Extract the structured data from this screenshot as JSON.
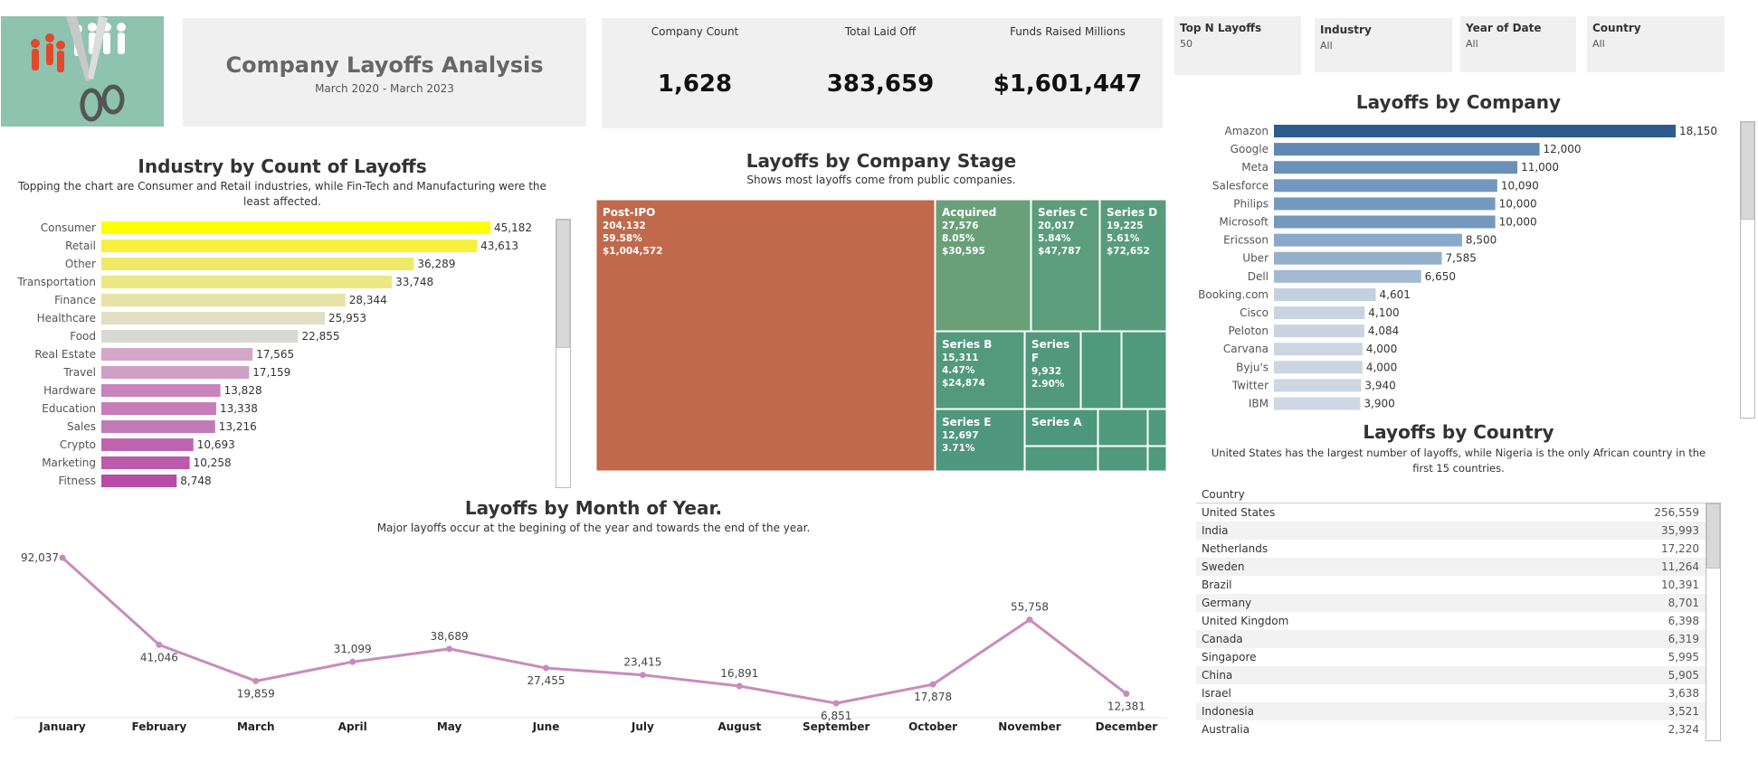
{
  "header": {
    "title": "Company Layoffs Analysis",
    "subtitle": "March 2020 - March 2023"
  },
  "kpis": [
    {
      "label": "Company Count",
      "value": "1,628"
    },
    {
      "label": "Total Laid Off",
      "value": "383,659"
    },
    {
      "label": "Funds Raised Millions",
      "value": "$1,601,447"
    }
  ],
  "filters": [
    {
      "label": "Top N Layoffs",
      "value": "50"
    },
    {
      "label": "Industry",
      "value": "All"
    },
    {
      "label": "Year of Date",
      "value": "All"
    },
    {
      "label": "Country",
      "value": "All"
    }
  ],
  "colors": {
    "treemap_postipo": "#c0694c",
    "treemap_green": "#4f9a7d",
    "line": "#c98bbd",
    "company_dark": "#2e5b8e",
    "company_light": "#dce4ec"
  },
  "chart_data": [
    {
      "id": "industry",
      "type": "bar",
      "orientation": "horizontal",
      "title": "Industry by Count of Layoffs",
      "subtitle": "Topping the chart are Consumer and Retail industries, while Fin-Tech and Manufacturing were the least affected.",
      "categories": [
        "Consumer",
        "Retail",
        "Other",
        "Transportation",
        "Finance",
        "Healthcare",
        "Food",
        "Real Estate",
        "Travel",
        "Hardware",
        "Education",
        "Sales",
        "Crypto",
        "Marketing",
        "Fitness"
      ],
      "values": [
        45182,
        43613,
        36289,
        33748,
        28344,
        25953,
        22855,
        17565,
        17159,
        13828,
        13338,
        13216,
        10693,
        10258,
        8748
      ],
      "labels": [
        "45,182",
        "43,613",
        "36,289",
        "33,748",
        "28,344",
        "25,953",
        "22,855",
        "17,565",
        "17,159",
        "13,828",
        "13,338",
        "13,216",
        "10,693",
        "10,258",
        "8,748"
      ],
      "colors": [
        "#ffff00",
        "#f7f03e",
        "#efe968",
        "#ebe785",
        "#e5e3a6",
        "#e0dfc4",
        "#d9d9d4",
        "#d3a7c8",
        "#cf9fc4",
        "#c884bb",
        "#c67db8",
        "#c27ab6",
        "#bf65b0",
        "#bc5aab",
        "#b84ca6"
      ]
    },
    {
      "id": "stage",
      "type": "treemap",
      "title": "Layoffs by Company Stage",
      "subtitle": "Shows most layoffs come from public companies.",
      "tiles": [
        {
          "name": "Post-IPO",
          "laid_off": "204,132",
          "share": "59.58%",
          "funds": "$1,004,572"
        },
        {
          "name": "Acquired",
          "laid_off": "27,576",
          "share": "8.05%",
          "funds": "$30,595"
        },
        {
          "name": "Series C",
          "laid_off": "20,017",
          "share": "5.84%",
          "funds": "$47,787"
        },
        {
          "name": "Series D",
          "laid_off": "19,225",
          "share": "5.61%",
          "funds": "$72,652"
        },
        {
          "name": "Series B",
          "laid_off": "15,311",
          "share": "4.47%",
          "funds": "$24,874"
        },
        {
          "name": "Series F",
          "laid_off": "9,932",
          "share": "2.90%",
          "funds": ""
        },
        {
          "name": "Series E",
          "laid_off": "12,697",
          "share": "3.71%",
          "funds": ""
        },
        {
          "name": "Series A",
          "laid_off": "",
          "share": "",
          "funds": ""
        }
      ]
    },
    {
      "id": "company",
      "type": "bar",
      "orientation": "horizontal",
      "title": "Layoffs by Company",
      "categories": [
        "Amazon",
        "Google",
        "Meta",
        "Salesforce",
        "Philips",
        "Microsoft",
        "Ericsson",
        "Uber",
        "Dell",
        "Booking.com",
        "Cisco",
        "Peloton",
        "Carvana",
        "Byju's",
        "Twitter",
        "IBM"
      ],
      "values": [
        18150,
        12000,
        11000,
        10090,
        10000,
        10000,
        8500,
        7585,
        6650,
        4601,
        4100,
        4084,
        4000,
        4000,
        3940,
        3900
      ],
      "labels": [
        "18,150",
        "12,000",
        "11,000",
        "10,090",
        "10,000",
        "10,000",
        "8,500",
        "7,585",
        "6,650",
        "4,601",
        "4,100",
        "4,084",
        "4,000",
        "4,000",
        "3,940",
        "3,900"
      ],
      "colors": [
        "#2e5b8e",
        "#6088b4",
        "#6a90ba",
        "#7398bf",
        "#7499bf",
        "#7499bf",
        "#8aa8c8",
        "#96b0cc",
        "#a2b9d1",
        "#c3d0dd",
        "#c9d4e0",
        "#c9d4e0",
        "#cbd6e1",
        "#cbd6e1",
        "#ccd7e2",
        "#cdd8e2"
      ]
    },
    {
      "id": "month",
      "type": "line",
      "title": "Layoffs by Month of Year.",
      "subtitle": "Major layoffs occur at the begining of the year and towards the end of the year.",
      "x": [
        "January",
        "February",
        "March",
        "April",
        "May",
        "June",
        "July",
        "August",
        "September",
        "October",
        "November",
        "December"
      ],
      "values": [
        92037,
        41046,
        19859,
        31099,
        38689,
        27455,
        23415,
        16891,
        6851,
        17878,
        55758,
        12381
      ],
      "labels": [
        "92,037",
        "41,046",
        "19,859",
        "31,099",
        "38,689",
        "27,455",
        "23,415",
        "16,891",
        "6,851",
        "17,878",
        "55,758",
        "12,381"
      ],
      "label_pos": [
        "left",
        "below",
        "below",
        "above",
        "above",
        "below",
        "above",
        "above",
        "below",
        "below",
        "above",
        "below"
      ]
    },
    {
      "id": "country",
      "type": "table",
      "title": "Layoffs by Country",
      "subtitle": "United States has the largest number of layoffs, while Nigeria is the only African country in the first 15 countries.",
      "column": "Country",
      "rows": [
        {
          "country": "United States",
          "value": "256,559"
        },
        {
          "country": "India",
          "value": "35,993"
        },
        {
          "country": "Netherlands",
          "value": "17,220"
        },
        {
          "country": "Sweden",
          "value": "11,264"
        },
        {
          "country": "Brazil",
          "value": "10,391"
        },
        {
          "country": "Germany",
          "value": "8,701"
        },
        {
          "country": "United Kingdom",
          "value": "6,398"
        },
        {
          "country": "Canada",
          "value": "6,319"
        },
        {
          "country": "Singapore",
          "value": "5,995"
        },
        {
          "country": "China",
          "value": "5,905"
        },
        {
          "country": "Israel",
          "value": "3,638"
        },
        {
          "country": "Indonesia",
          "value": "3,521"
        },
        {
          "country": "Australia",
          "value": "2,324"
        }
      ]
    }
  ]
}
